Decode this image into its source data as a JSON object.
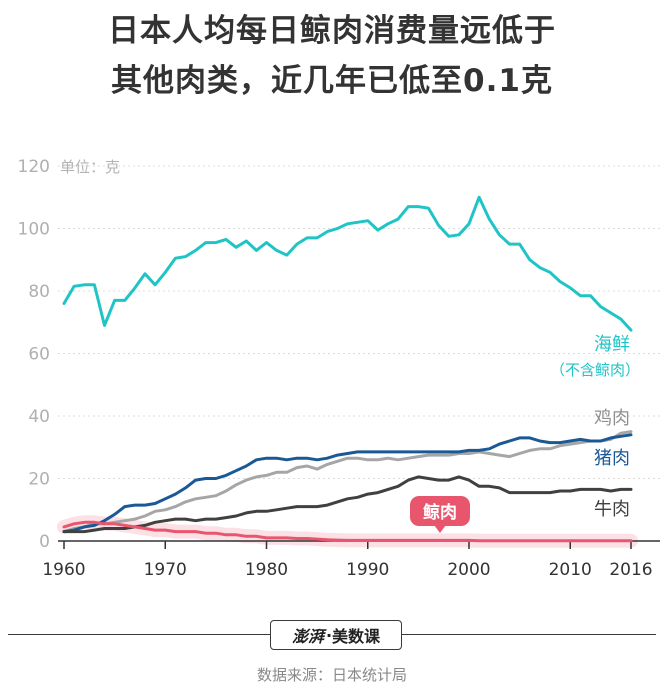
{
  "title": {
    "line1": "日本人均每日鲸肉消费量远低于",
    "line2": "其他肉类，近几年已低至0.1克"
  },
  "unit_label": "单位：克",
  "brand": {
    "seal": "澎湃",
    "separator": "·",
    "name": "美数课"
  },
  "source": "数据来源：日本统计局",
  "chart_data": {
    "type": "line",
    "xlim": [
      1960,
      2016
    ],
    "ylim": [
      0,
      120
    ],
    "yticks": [
      "0",
      "20",
      "40",
      "60",
      "80",
      "100",
      "120"
    ],
    "xticks": [
      "1960",
      "1970",
      "1980",
      "1990",
      "2000",
      "2010",
      "2016"
    ],
    "grid": true,
    "x": [
      1960,
      1961,
      1962,
      1963,
      1964,
      1965,
      1966,
      1967,
      1968,
      1969,
      1970,
      1971,
      1972,
      1973,
      1974,
      1975,
      1976,
      1977,
      1978,
      1979,
      1980,
      1981,
      1982,
      1983,
      1984,
      1985,
      1986,
      1987,
      1988,
      1989,
      1990,
      1991,
      1992,
      1993,
      1994,
      1995,
      1996,
      1997,
      1998,
      1999,
      2000,
      2001,
      2002,
      2003,
      2004,
      2005,
      2006,
      2007,
      2008,
      2009,
      2010,
      2011,
      2012,
      2013,
      2014,
      2015,
      2016
    ],
    "series": [
      {
        "name": "海鲜",
        "name_note": "（不含鲸肉）",
        "color": "#1fc4c6",
        "values": [
          76,
          81.5,
          82,
          82,
          69,
          77,
          77,
          81,
          85.5,
          82,
          86,
          90.5,
          91,
          93,
          95.5,
          95.5,
          96.5,
          94,
          96,
          93,
          95.5,
          93,
          91.5,
          95,
          97,
          97,
          99,
          100,
          101.5,
          102,
          102.5,
          99.5,
          101.5,
          103,
          107,
          107,
          106.5,
          101,
          97.5,
          98,
          101.5,
          110,
          103,
          98,
          95,
          95,
          90,
          87.5,
          86,
          83,
          81,
          78.5,
          78.5,
          75,
          73,
          71,
          67.5
        ]
      },
      {
        "name": "鸡肉",
        "color": "#a6a6a6",
        "values": [
          3,
          4,
          4.5,
          5.5,
          5.5,
          6,
          6.5,
          7,
          8,
          9.5,
          10,
          11,
          12.5,
          13.5,
          14,
          14.5,
          16,
          18,
          19.5,
          20.5,
          21,
          22,
          22,
          23.5,
          24,
          23,
          24.5,
          25.5,
          26.5,
          26.5,
          26,
          26,
          26.5,
          26,
          26.5,
          27,
          27.5,
          27.5,
          27.5,
          28,
          28,
          28.5,
          28,
          27.5,
          27,
          28,
          29,
          29.5,
          29.5,
          30.5,
          31,
          31.5,
          32,
          32,
          32.5,
          34.5,
          35
        ]
      },
      {
        "name": "猪肉",
        "color": "#1a5896",
        "values": [
          3,
          3.5,
          4.5,
          5,
          6.5,
          8.5,
          11,
          11.5,
          11.5,
          12,
          13.5,
          15,
          17,
          19.5,
          20,
          20,
          21,
          22.5,
          24,
          26,
          26.5,
          26.5,
          26,
          26.5,
          26.5,
          26,
          26.5,
          27.5,
          28,
          28.5,
          28.5,
          28.5,
          28.5,
          28.5,
          28.5,
          28.5,
          28.5,
          28.5,
          28.5,
          28.5,
          29,
          29,
          29.5,
          31,
          32,
          33,
          33,
          32,
          31.5,
          31.5,
          32,
          32.5,
          32,
          32,
          33,
          33.5,
          34
        ]
      },
      {
        "name": "牛肉",
        "color": "#404040",
        "values": [
          3,
          3,
          3,
          3.5,
          4,
          4,
          4,
          4.5,
          5,
          6,
          6.5,
          7,
          7,
          6.5,
          7,
          7,
          7.5,
          8,
          9,
          9.5,
          9.5,
          10,
          10.5,
          11,
          11,
          11,
          11.5,
          12.5,
          13.5,
          14,
          15,
          15.5,
          16.5,
          17.5,
          19.5,
          20.5,
          20,
          19.5,
          19.5,
          20.5,
          19.5,
          17.5,
          17.5,
          17,
          15.5,
          15.5,
          15.5,
          15.5,
          15.5,
          16,
          16,
          16.5,
          16.5,
          16.5,
          16,
          16.5,
          16.5
        ]
      },
      {
        "name": "鲸肉",
        "color": "#e8566e",
        "values": [
          4.5,
          5.5,
          6,
          6,
          5.5,
          5.5,
          5,
          4.5,
          4,
          3.5,
          3.5,
          3,
          3,
          3,
          2.5,
          2.5,
          2,
          2,
          1.5,
          1.5,
          1,
          1,
          1,
          0.8,
          0.8,
          0.6,
          0.4,
          0.3,
          0.2,
          0.2,
          0.2,
          0.2,
          0.2,
          0.2,
          0.2,
          0.2,
          0.2,
          0.2,
          0.2,
          0.2,
          0.2,
          0.1,
          0.1,
          0.1,
          0.1,
          0.1,
          0.1,
          0.1,
          0.1,
          0.1,
          0.1,
          0.1,
          0.1,
          0.1,
          0.1,
          0.1,
          0.1
        ]
      }
    ]
  }
}
